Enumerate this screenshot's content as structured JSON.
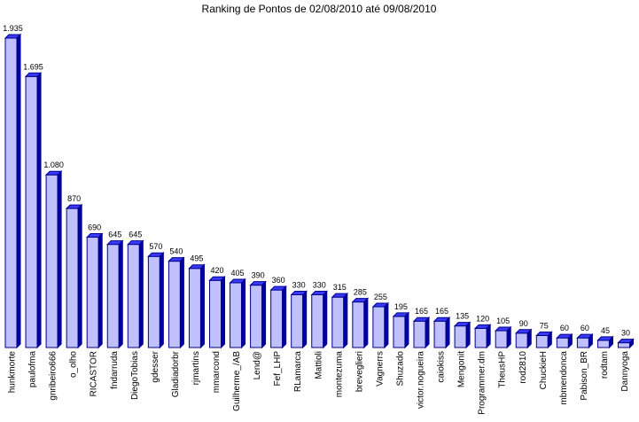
{
  "chart_data": {
    "type": "bar",
    "title": "Ranking de Pontos de 02/08/2010 até 09/08/2010",
    "xlabel": "",
    "ylabel": "",
    "grid": false,
    "legend": "none",
    "colors": {
      "face": "#c0c0ff",
      "side": "#0000a0",
      "top": "#3a3aff",
      "edge": "#00008b"
    },
    "categories": [
      "hunkmorte",
      "paulofma",
      "gnribeiro666",
      "o_olho",
      "RICASTOR",
      "fndarruda",
      "DiegoTobias",
      "gdesser",
      "Gladiadorbr",
      "rjmartins",
      "mmarcond",
      "Guilherme_/AB",
      "Lend@",
      "Fef_LHP",
      "RLamarca",
      "Mattioli",
      "montezuma",
      "breveglieri",
      "Vagnerrs",
      "Shuzado",
      "victor.nogueira",
      "caiokiss",
      "Mengonit",
      "Programmer.dm",
      "TheusHP",
      "rod2810",
      "ChuckieH",
      "mbmendonca",
      "Pabison_BR",
      "rodtam",
      "Dannyoga"
    ],
    "values": [
      1935,
      1695,
      1080,
      870,
      690,
      645,
      645,
      570,
      540,
      495,
      420,
      405,
      390,
      360,
      330,
      330,
      315,
      285,
      255,
      195,
      165,
      165,
      135,
      120,
      105,
      90,
      75,
      60,
      60,
      45,
      30
    ],
    "value_labels": [
      "1.935",
      "1.695",
      "1.080",
      "870",
      "690",
      "645",
      "645",
      "570",
      "540",
      "495",
      "420",
      "405",
      "390",
      "360",
      "330",
      "330",
      "315",
      "285",
      "255",
      "195",
      "165",
      "165",
      "135",
      "120",
      "105",
      "90",
      "75",
      "60",
      "60",
      "45",
      "30"
    ],
    "ylim": [
      0,
      1935
    ]
  }
}
